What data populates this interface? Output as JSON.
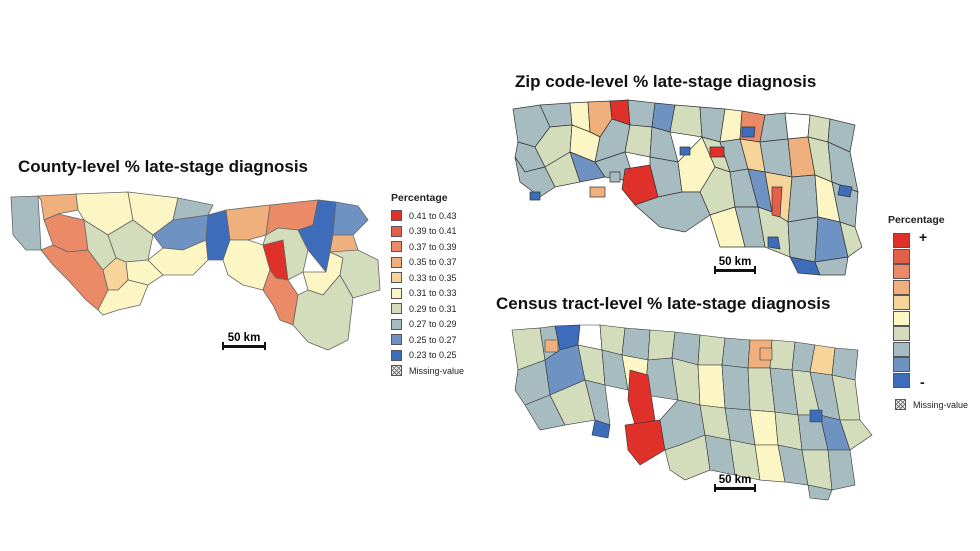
{
  "maps": {
    "county": {
      "title": "County-level % late-stage diagnosis",
      "scale_label": "50 km"
    },
    "zip": {
      "title": "Zip code-level % late-stage diagnosis",
      "scale_label": "50 km"
    },
    "tract": {
      "title": "Census tract-level % late-stage diagnosis",
      "scale_label": "50 km"
    }
  },
  "legend_county": {
    "title": "Percentage",
    "items": [
      {
        "label": "0.41 to 0.43",
        "color": "#e0302a"
      },
      {
        "label": "0.39 to 0.41",
        "color": "#e5604a"
      },
      {
        "label": "0.37 to 0.39",
        "color": "#ea8a67"
      },
      {
        "label": "0.35 to 0.37",
        "color": "#f0b07d"
      },
      {
        "label": "0.33 to 0.35",
        "color": "#f6d49a"
      },
      {
        "label": "0.31 to 0.33",
        "color": "#fbf6c3"
      },
      {
        "label": "0.29 to 0.31",
        "color": "#d3ddbb"
      },
      {
        "label": "0.27 to 0.29",
        "color": "#a7bcc0"
      },
      {
        "label": "0.25 to 0.27",
        "color": "#6e93c3"
      },
      {
        "label": "0.23 to 0.25",
        "color": "#3d6dba"
      }
    ],
    "missing_label": "Missing-value"
  },
  "legend_shared": {
    "title": "Percentage",
    "plus": "+",
    "minus": "-",
    "colors": [
      "#e0302a",
      "#e5604a",
      "#ea8a67",
      "#f0b07d",
      "#f6d49a",
      "#fbf6c3",
      "#d3ddbb",
      "#a7bcc0",
      "#6e93c3",
      "#3d6dba"
    ],
    "missing_label": "Missing-value"
  }
}
